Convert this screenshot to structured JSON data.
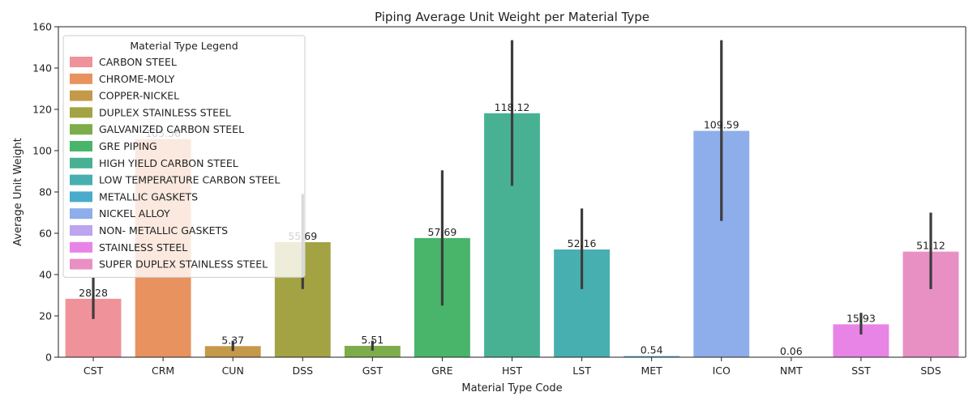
{
  "chart_data": {
    "type": "bar",
    "title": "Piping Average Unit Weight per Material Type",
    "xlabel": "Material Type Code",
    "ylabel": "Average Unit Weight",
    "ylim": [
      0,
      160
    ],
    "yticks": [
      0,
      20,
      40,
      60,
      80,
      100,
      120,
      140,
      160
    ],
    "grid": false,
    "legend_title": "Material Type Legend",
    "legend_position": "top-left",
    "categories": [
      "CST",
      "CRM",
      "CUN",
      "DSS",
      "GST",
      "GRE",
      "HST",
      "LST",
      "MET",
      "ICO",
      "NMT",
      "SST",
      "SDS"
    ],
    "values": [
      28.28,
      105.56,
      5.37,
      55.69,
      5.51,
      57.69,
      118.12,
      52.16,
      0.54,
      109.59,
      0.06,
      15.93,
      51.12
    ],
    "value_labels": [
      "28.28",
      "105.56",
      "5.37",
      "55.69",
      "5.51",
      "57.69",
      "118.12",
      "52.16",
      "0.54",
      "109.59",
      "0.06",
      "15.93",
      "51.12"
    ],
    "error_low": [
      18.5,
      105.56,
      3.0,
      33.0,
      3.2,
      25.0,
      83.0,
      33.0,
      0.54,
      66.0,
      0.06,
      11.0,
      33.0
    ],
    "error_high": [
      38.5,
      105.56,
      8.0,
      79.0,
      8.0,
      90.5,
      153.5,
      72.0,
      0.54,
      153.5,
      0.06,
      21.5,
      70.0
    ],
    "series": [
      {
        "name": "CARBON STEEL",
        "color": "#ef929a"
      },
      {
        "name": "CHROME-MOLY",
        "color": "#e8935f"
      },
      {
        "name": "COPPER-NICKEL",
        "color": "#c4994a"
      },
      {
        "name": "DUPLEX STAINLESS STEEL",
        "color": "#a3a344"
      },
      {
        "name": "GALVANIZED CARBON STEEL",
        "color": "#7dad4a"
      },
      {
        "name": "GRE PIPING",
        "color": "#48b56b"
      },
      {
        "name": "HIGH YIELD CARBON STEEL",
        "color": "#48b194"
      },
      {
        "name": "LOW TEMPERATURE CARBON STEEL",
        "color": "#48afb1"
      },
      {
        "name": "METALLIC GASKETS",
        "color": "#4aabcc"
      },
      {
        "name": "NICKEL ALLOY",
        "color": "#8eadeb"
      },
      {
        "name": "NON- METALLIC GASKETS",
        "color": "#bca4ee"
      },
      {
        "name": "STAINLESS STEEL",
        "color": "#e884e6"
      },
      {
        "name": "SUPER DUPLEX STAINLESS STEEL",
        "color": "#e890c4"
      }
    ]
  }
}
